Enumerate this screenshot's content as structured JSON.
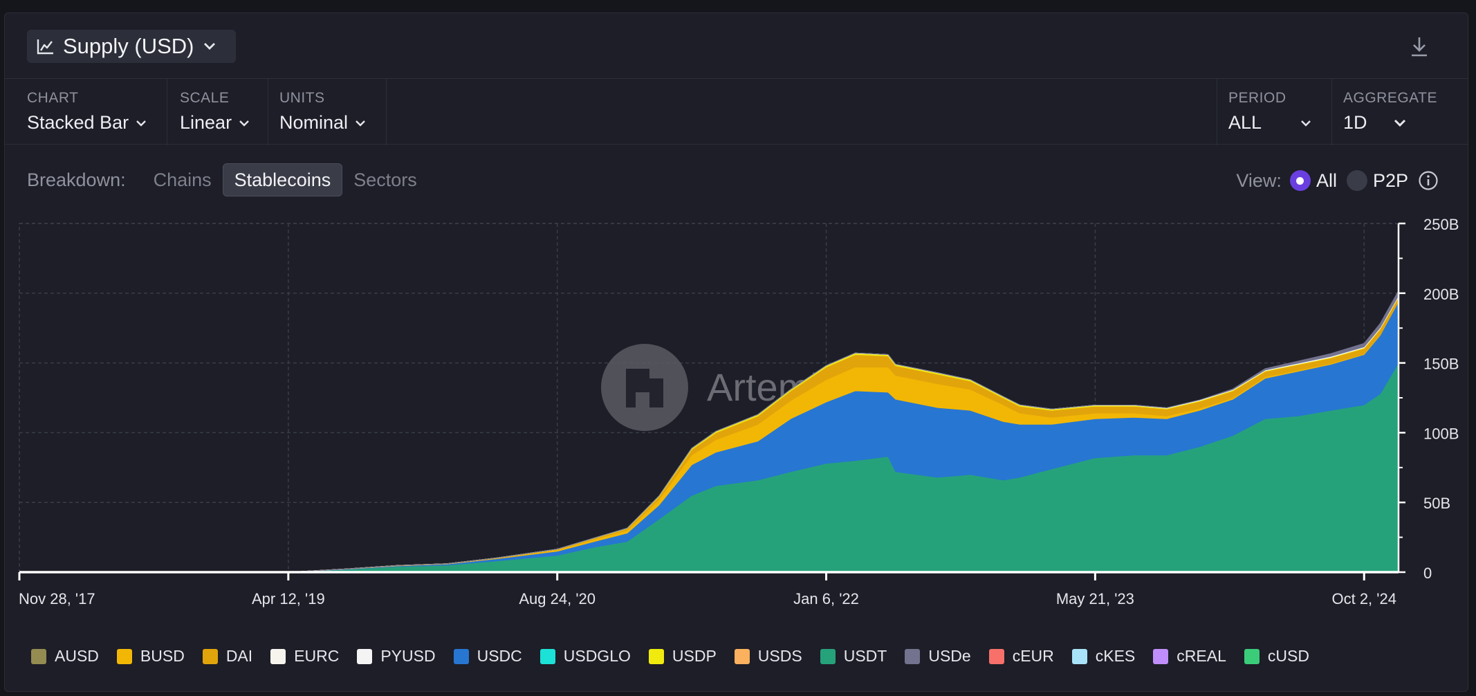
{
  "header": {
    "title": "Supply (USD)"
  },
  "controls": {
    "chart": {
      "label": "CHART",
      "value": "Stacked Bar"
    },
    "scale": {
      "label": "SCALE",
      "value": "Linear"
    },
    "units": {
      "label": "UNITS",
      "value": "Nominal"
    },
    "period": {
      "label": "PERIOD",
      "value": "ALL"
    },
    "aggregate": {
      "label": "AGGREGATE",
      "value": "1D"
    }
  },
  "breakdown": {
    "label": "Breakdown:",
    "tabs": [
      "Chains",
      "Stablecoins",
      "Sectors"
    ],
    "active": "Stablecoins"
  },
  "view": {
    "label": "View:",
    "options": [
      "All",
      "P2P"
    ],
    "selected": "All"
  },
  "watermark": "Artemis",
  "legend": [
    {
      "name": "AUSD",
      "color": "#958c52"
    },
    {
      "name": "BUSD",
      "color": "#f2b705"
    },
    {
      "name": "DAI",
      "color": "#e2a40b"
    },
    {
      "name": "EURC",
      "color": "#f7f4ee"
    },
    {
      "name": "PYUSD",
      "color": "#f4f4f4"
    },
    {
      "name": "USDC",
      "color": "#2776d2"
    },
    {
      "name": "USDGLO",
      "color": "#1ce1d7"
    },
    {
      "name": "USDP",
      "color": "#f0ea0f"
    },
    {
      "name": "USDS",
      "color": "#fbb15e"
    },
    {
      "name": "USDT",
      "color": "#26a27b"
    },
    {
      "name": "USDe",
      "color": "#73738f"
    },
    {
      "name": "cEUR",
      "color": "#f7706a"
    },
    {
      "name": "cKES",
      "color": "#a8e3fa"
    },
    {
      "name": "cREAL",
      "color": "#c08efa"
    },
    {
      "name": "cUSD",
      "color": "#3bcc7a"
    }
  ],
  "chart_data": {
    "type": "bar",
    "stacked": true,
    "x_range": [
      "2017-11-28",
      "2024-12-05"
    ],
    "x_ticks": [
      "Nov 28, '17",
      "Apr 12, '19",
      "Aug 24, '20",
      "Jan 6, '22",
      "May 21, '23",
      "Oct 2, '24"
    ],
    "y_ticks": [
      "0",
      "50B",
      "100B",
      "150B",
      "200B",
      "250B"
    ],
    "ylim": [
      0,
      250
    ],
    "y_unit": "B USD",
    "grid": true,
    "x": [
      "2017-11-28",
      "2018-06-01",
      "2019-01-01",
      "2019-04-12",
      "2019-08-01",
      "2019-11-01",
      "2020-02-01",
      "2020-05-01",
      "2020-08-24",
      "2020-11-01",
      "2021-01-01",
      "2021-03-01",
      "2021-05-01",
      "2021-06-15",
      "2021-09-01",
      "2021-11-01",
      "2022-01-06",
      "2022-03-01",
      "2022-05-01",
      "2022-05-15",
      "2022-08-01",
      "2022-10-01",
      "2022-12-01",
      "2023-01-01",
      "2023-03-01",
      "2023-05-21",
      "2023-08-01",
      "2023-10-01",
      "2023-12-01",
      "2024-02-01",
      "2024-04-01",
      "2024-06-01",
      "2024-08-01",
      "2024-10-02",
      "2024-11-01",
      "2024-12-05"
    ],
    "series": [
      {
        "name": "USDT",
        "values": [
          0,
          0,
          0,
          0,
          2,
          4,
          5,
          8,
          12,
          18,
          22,
          38,
          55,
          62,
          66,
          72,
          78,
          80,
          83,
          72,
          68,
          70,
          66,
          68,
          74,
          82,
          84,
          84,
          90,
          98,
          110,
          112,
          116,
          120,
          128,
          150
        ]
      },
      {
        "name": "USDC",
        "values": [
          0,
          0,
          0,
          0,
          0.3,
          0.5,
          0.8,
          1.5,
          3,
          4,
          6,
          10,
          22,
          24,
          28,
          38,
          44,
          50,
          46,
          52,
          50,
          46,
          42,
          38,
          32,
          28,
          27,
          26,
          26,
          26,
          29,
          32,
          33,
          36,
          42,
          44
        ]
      },
      {
        "name": "BUSD",
        "values": [
          0,
          0,
          0,
          0,
          0.1,
          0.2,
          0.2,
          0.4,
          1,
          1.5,
          2,
          4,
          7,
          9,
          12,
          13,
          16,
          17,
          18,
          17,
          17,
          15,
          12,
          8,
          5,
          4,
          3,
          2,
          1.5,
          1,
          1,
          0.8,
          0.6,
          0.5,
          0.4,
          0.3
        ]
      },
      {
        "name": "DAI",
        "values": [
          0,
          0,
          0,
          0,
          0.05,
          0.1,
          0.1,
          0.2,
          0.4,
          0.8,
          1.2,
          2,
          4,
          5,
          6,
          7,
          9,
          9,
          8,
          7,
          7,
          6,
          5,
          5,
          5,
          5,
          5,
          5,
          5,
          5,
          4,
          4,
          4,
          4,
          4,
          3
        ]
      },
      {
        "name": "USDP",
        "values": [
          0,
          0,
          0,
          0,
          0,
          0,
          0,
          0,
          0.1,
          0.2,
          0.3,
          0.5,
          0.8,
          1,
          1,
          1,
          1,
          1,
          0.9,
          0.9,
          0.9,
          0.9,
          0.8,
          0.8,
          0.8,
          0.7,
          0.6,
          0.5,
          0.5,
          0.5,
          0.4,
          0.4,
          0.4,
          0.4,
          0.4,
          0.4
        ]
      },
      {
        "name": "EURC",
        "values": [
          0,
          0,
          0,
          0,
          0,
          0,
          0,
          0,
          0,
          0,
          0,
          0,
          0,
          0,
          0,
          0,
          0.1,
          0.1,
          0.1,
          0.1,
          0.1,
          0.1,
          0.1,
          0.1,
          0.1,
          0.1,
          0.1,
          0.1,
          0.1,
          0.1,
          0.1,
          0.1,
          0.1,
          0.1,
          0.1,
          0.1
        ]
      },
      {
        "name": "PYUSD",
        "values": [
          0,
          0,
          0,
          0,
          0,
          0,
          0,
          0,
          0,
          0,
          0,
          0,
          0,
          0,
          0,
          0,
          0,
          0,
          0,
          0,
          0,
          0,
          0,
          0,
          0,
          0,
          0.1,
          0.2,
          0.3,
          0.3,
          0.4,
          0.5,
          0.6,
          0.5,
          0.5,
          0.5
        ]
      },
      {
        "name": "USDe",
        "values": [
          0,
          0,
          0,
          0,
          0,
          0,
          0,
          0,
          0,
          0,
          0,
          0,
          0,
          0,
          0,
          0,
          0,
          0,
          0,
          0,
          0,
          0,
          0,
          0,
          0,
          0,
          0,
          0,
          0,
          0.5,
          1,
          1.5,
          2,
          2.5,
          3,
          3.5
        ]
      }
    ]
  }
}
